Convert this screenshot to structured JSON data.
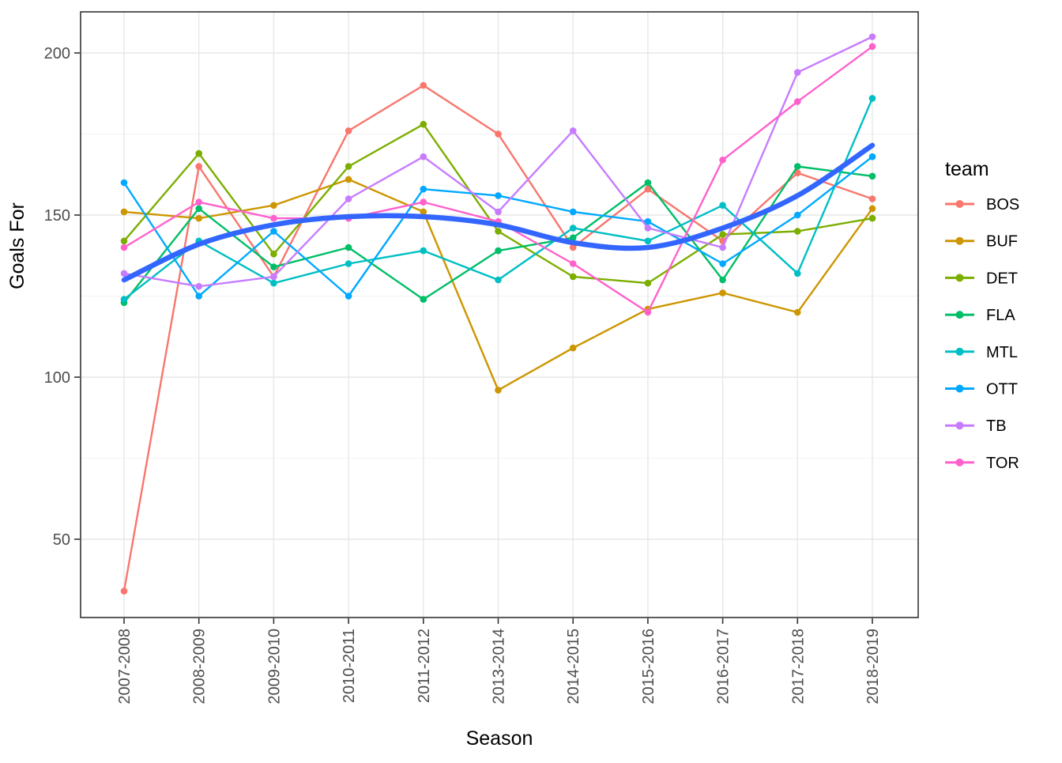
{
  "chart_data": {
    "type": "line",
    "title": "",
    "xlabel": "Season",
    "ylabel": "Goals For",
    "legend_title": "team",
    "legend_position": "right",
    "grid": true,
    "x_categories": [
      "2007-2008",
      "2008-2009",
      "2009-2010",
      "2010-2011",
      "2011-2012",
      "2013-2014",
      "2014-2015",
      "2015-2016",
      "2016-2017",
      "2017-2018",
      "2018-2019"
    ],
    "y_ticks": [
      50,
      100,
      150,
      200
    ],
    "y_minor_ticks": [
      75,
      125,
      175
    ],
    "ylim": [
      26,
      213
    ],
    "series": [
      {
        "name": "BOS",
        "color": "#F8766D",
        "values": [
          34,
          165,
          131,
          176,
          190,
          175,
          140,
          158,
          142,
          163,
          155
        ]
      },
      {
        "name": "BUF",
        "color": "#CD9600",
        "values": [
          151,
          149,
          153,
          161,
          151,
          96,
          109,
          121,
          126,
          120,
          152
        ]
      },
      {
        "name": "DET",
        "color": "#7CAE00",
        "values": [
          142,
          169,
          138,
          165,
          178,
          145,
          131,
          129,
          144,
          145,
          149
        ]
      },
      {
        "name": "FLA",
        "color": "#00BE67",
        "values": [
          123,
          152,
          134,
          140,
          124,
          139,
          143,
          160,
          130,
          165,
          162
        ]
      },
      {
        "name": "MTL",
        "color": "#00BFC4",
        "values": [
          124,
          142,
          129,
          135,
          139,
          130,
          146,
          142,
          153,
          132,
          186
        ]
      },
      {
        "name": "OTT",
        "color": "#00A9FF",
        "values": [
          160,
          125,
          145,
          125,
          158,
          156,
          151,
          148,
          135,
          150,
          168
        ]
      },
      {
        "name": "TB",
        "color": "#C77CFF",
        "values": [
          132,
          128,
          131,
          155,
          168,
          151,
          176,
          146,
          140,
          194,
          205
        ]
      },
      {
        "name": "TOR",
        "color": "#FF61CC",
        "values": [
          140,
          154,
          149,
          149,
          154,
          148,
          135,
          120,
          167,
          185,
          202
        ]
      }
    ],
    "smooth_line": {
      "name": "loess-trend",
      "color": "#3366FF",
      "values": [
        130,
        141,
        147,
        149.5,
        149.5,
        147,
        141.5,
        140,
        146,
        156,
        171.5
      ]
    }
  },
  "theme": {
    "panel_bg": "#FFFFFF",
    "panel_border": "#333333",
    "grid_major": "#E7E7E7",
    "grid_minor": "#F2F2F2",
    "tick_color": "#333333",
    "tick_label_color": "#4D4D4D",
    "axis_title_color": "#000000",
    "legend_text_color": "#000000"
  }
}
